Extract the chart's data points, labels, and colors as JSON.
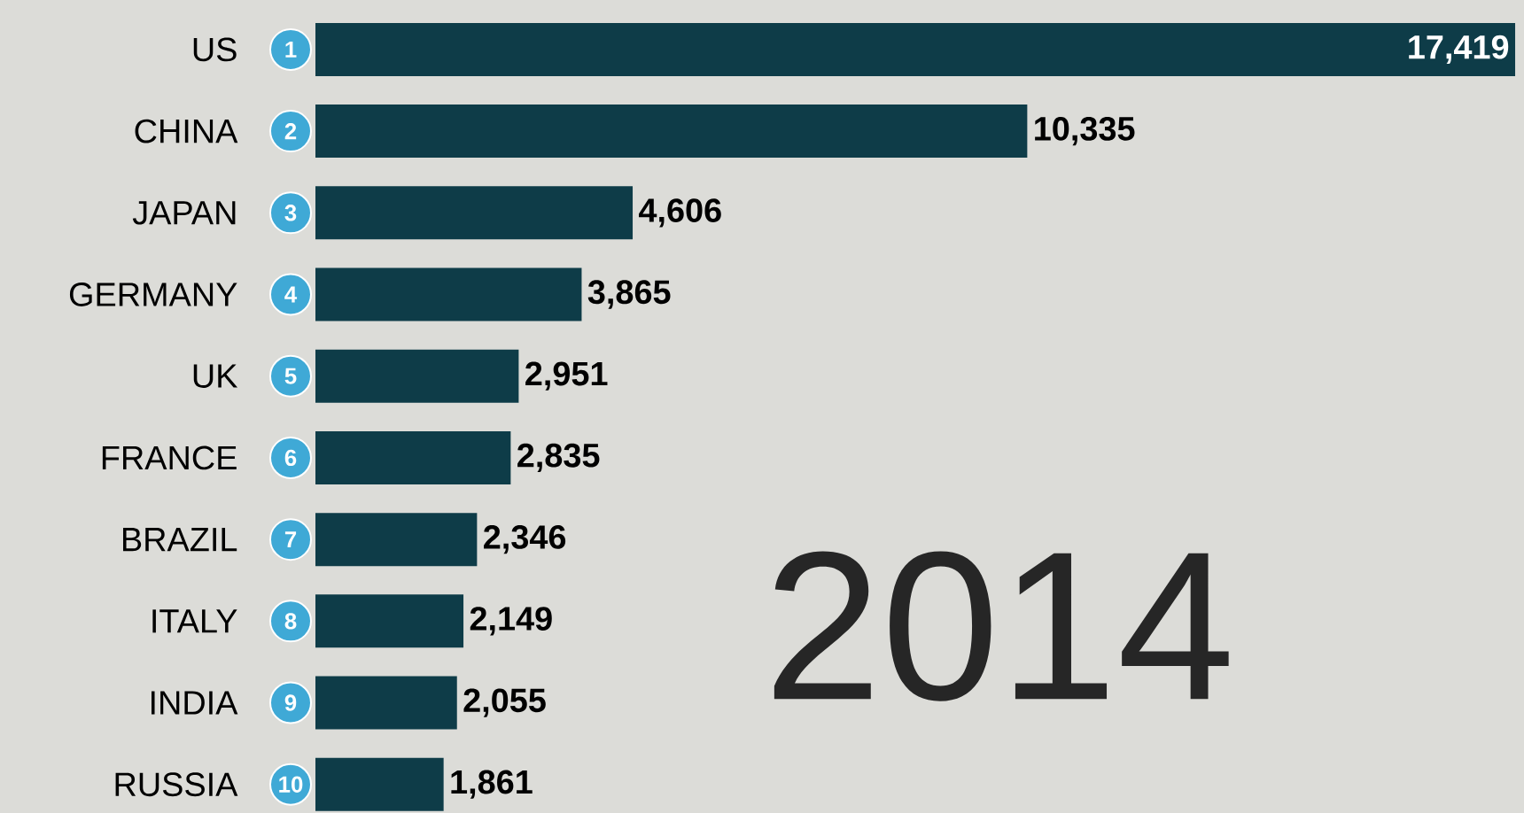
{
  "chart_data": {
    "type": "bar",
    "orientation": "horizontal",
    "color": "#0e3c48",
    "categories": [
      "US",
      "CHINA",
      "JAPAN",
      "GERMANY",
      "UK",
      "FRANCE",
      "BRAZIL",
      "ITALY",
      "INDIA",
      "RUSSIA"
    ],
    "values": [
      17419,
      10335,
      4606,
      3865,
      2951,
      2835,
      2346,
      2149,
      2055,
      1861
    ],
    "value_labels": [
      "17,419",
      "10,335",
      "4,606",
      "3,865",
      "2,951",
      "2,835",
      "2,346",
      "2,149",
      "2,055",
      "1,861"
    ],
    "annotations": [
      {
        "text": "1",
        "y": "US"
      },
      {
        "text": "2",
        "y": "CHINA"
      },
      {
        "text": "3",
        "y": "JAPAN"
      },
      {
        "text": "4",
        "y": "GERMANY"
      },
      {
        "text": "5",
        "y": "UK"
      },
      {
        "text": "6",
        "y": "FRANCE"
      },
      {
        "text": "7",
        "y": "BRAZIL"
      },
      {
        "text": "8",
        "y": "ITALY"
      },
      {
        "text": "9",
        "y": "INDIA"
      },
      {
        "text": "10",
        "y": "RUSSIA"
      },
      "2014"
    ]
  }
}
